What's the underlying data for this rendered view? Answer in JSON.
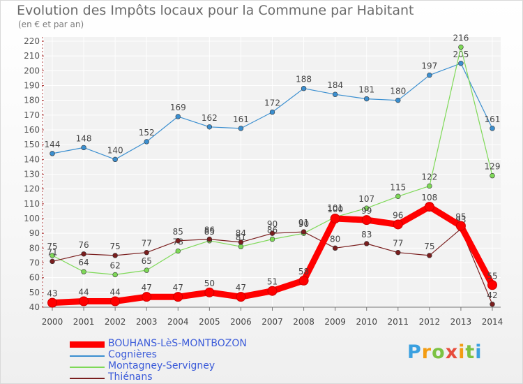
{
  "title": "Evolution des Impôts locaux pour la Commune par Habitant",
  "subtitle": "(en € et par an)",
  "logo": {
    "letters": [
      "P",
      "r",
      "o",
      "x",
      "i",
      "t",
      "i"
    ],
    "colors": [
      "#3aa0e0",
      "#f39c12",
      "#7cc242",
      "#e74c3c",
      "#f39c12",
      "#7cc242",
      "#3aa0e0"
    ]
  },
  "chart_data": {
    "type": "line",
    "title": "Evolution des Impôts locaux pour la Commune par Habitant",
    "ylabel": "(en € et par an)",
    "xlabel": "",
    "ylim": [
      40,
      220
    ],
    "ytick_step": 10,
    "categories": [
      "2000",
      "2001",
      "2002",
      "2003",
      "2004",
      "2005",
      "2006",
      "2007",
      "2008",
      "2009",
      "2010",
      "2011",
      "2012",
      "2013",
      "2014"
    ],
    "grid": true,
    "legend_position": "bottom-left",
    "series": [
      {
        "name": "BOUHANS-LèS-MONTBOZON",
        "color": "#ff0000",
        "values": [
          43,
          44,
          44,
          47,
          47,
          50,
          47,
          51,
          58,
          100,
          99,
          96,
          108,
          95,
          55
        ]
      },
      {
        "name": "Cognières",
        "color": "#3b8fd0",
        "values": [
          144,
          148,
          140,
          152,
          169,
          162,
          161,
          172,
          188,
          184,
          181,
          180,
          197,
          205,
          161
        ]
      },
      {
        "name": "Montagney-Servigney",
        "color": "#7ed957",
        "values": [
          75,
          64,
          62,
          65,
          78,
          85,
          81,
          86,
          90,
          101,
          107,
          115,
          122,
          216,
          129
        ]
      },
      {
        "name": "Thiénans",
        "color": "#7a1e1e",
        "values": [
          71,
          76,
          75,
          77,
          85,
          86,
          84,
          90,
          91,
          80,
          83,
          77,
          75,
          93,
          42
        ]
      }
    ]
  }
}
